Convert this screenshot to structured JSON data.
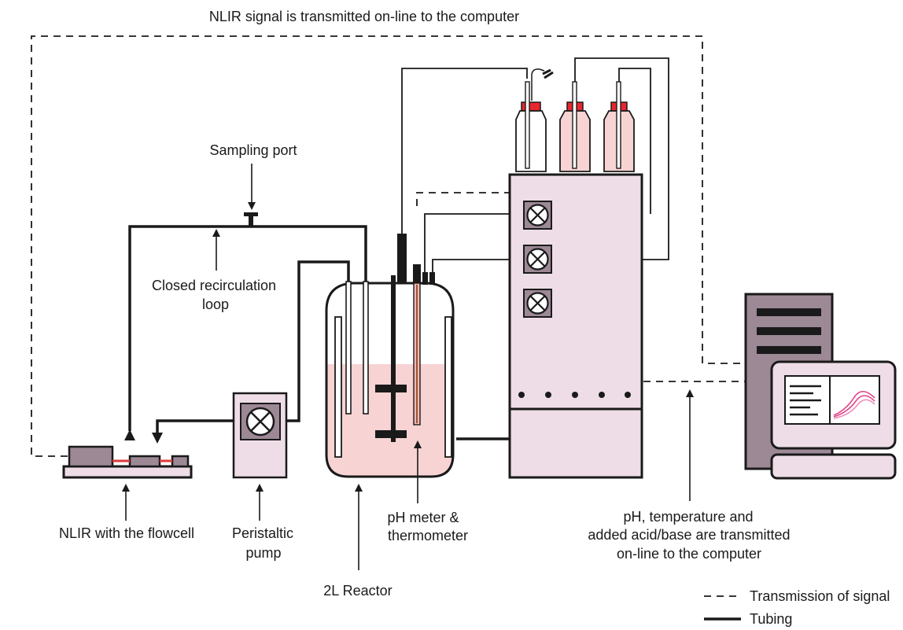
{
  "labels": {
    "top_signal": "NLIR signal is transmitted on-line to the computer",
    "sampling_port": "Sampling port",
    "recirc_line1": "Closed recirculation",
    "recirc_line2": "loop",
    "nlir": "NLIR with the flowcell",
    "pump_line1": "Peristaltic",
    "pump_line2": "pump",
    "reactor": "2L Reactor",
    "ph_line1": "pH meter &",
    "ph_line2": "thermometer",
    "transmit_line1": "pH, temperature and",
    "transmit_line2": "added acid/base are transmitted",
    "transmit_line3": "on-line to the computer"
  },
  "legend": {
    "signal": "Transmission of signal",
    "tubing": "Tubing"
  },
  "colors": {
    "line": "#1a1a1a",
    "device_purple": "#9d8896",
    "light_panel": "#eedde6",
    "liquid_pink": "#f7d3d3",
    "cap_red": "#e8262d",
    "flowcell_red": "#e03a3a",
    "spectrum_pink": "#e0448a"
  }
}
